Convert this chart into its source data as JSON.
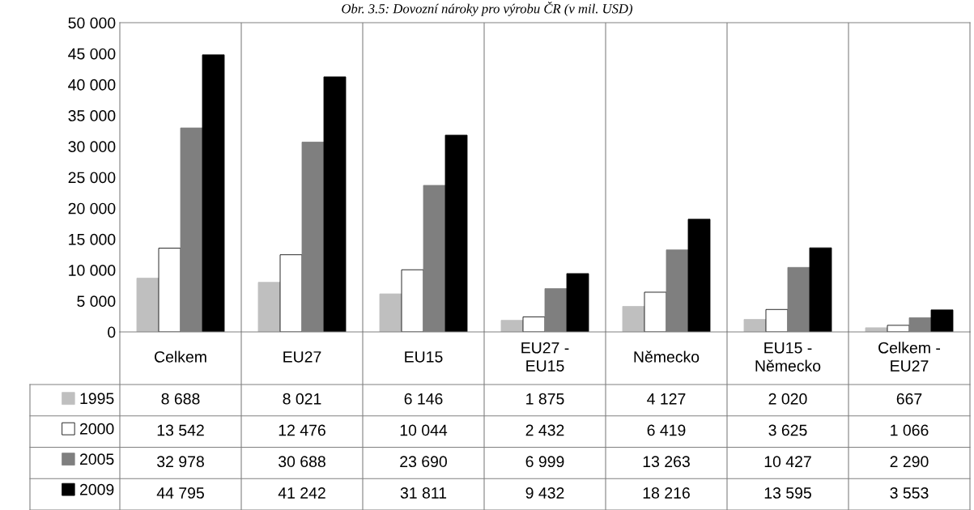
{
  "chart_data": {
    "type": "bar",
    "title": "Obr. 3.5: Dovozní nároky pro výrobu ČR (v mil. USD)",
    "categories": [
      "Celkem",
      "EU27",
      "EU15",
      "EU27 -\nEU15",
      "Německo",
      "EU15 -\nNěmecko",
      "Celkem -\nEU27"
    ],
    "series": [
      {
        "name": "1995",
        "color": "#bfbfbf",
        "values": [
          8688,
          8021,
          6146,
          1875,
          4127,
          2020,
          667
        ],
        "value_labels": [
          "8 688",
          "8 021",
          "6 146",
          "1 875",
          "4 127",
          "2 020",
          "667"
        ]
      },
      {
        "name": "2000",
        "color": "#ffffff",
        "values": [
          13542,
          12476,
          10044,
          2432,
          6419,
          3625,
          1066
        ],
        "value_labels": [
          "13 542",
          "12 476",
          "10 044",
          "2 432",
          "6 419",
          "3 625",
          "1 066"
        ]
      },
      {
        "name": "2005",
        "color": "#7f7f7f",
        "values": [
          32978,
          30688,
          23690,
          6999,
          13263,
          10427,
          2290
        ],
        "value_labels": [
          "32 978",
          "30 688",
          "23 690",
          "6 999",
          "13 263",
          "10 427",
          "2 290"
        ]
      },
      {
        "name": "2009",
        "color": "#000000",
        "values": [
          44795,
          41242,
          31811,
          9432,
          18216,
          13595,
          3553
        ],
        "value_labels": [
          "44 795",
          "41 242",
          "31 811",
          "9 432",
          "18 216",
          "13 595",
          "3 553"
        ]
      }
    ],
    "ylim": [
      0,
      50000
    ],
    "yticks": [
      {
        "value": 0,
        "label": "0"
      },
      {
        "value": 5000,
        "label": "5 000"
      },
      {
        "value": 10000,
        "label": "10 000"
      },
      {
        "value": 15000,
        "label": "15 000"
      },
      {
        "value": 20000,
        "label": "20 000"
      },
      {
        "value": 25000,
        "label": "25 000"
      },
      {
        "value": 30000,
        "label": "30 000"
      },
      {
        "value": 35000,
        "label": "35 000"
      },
      {
        "value": 40000,
        "label": "40 000"
      },
      {
        "value": 45000,
        "label": "45 000"
      },
      {
        "value": 50000,
        "label": "50 000"
      }
    ],
    "grid": "x",
    "legend": "bottom"
  }
}
